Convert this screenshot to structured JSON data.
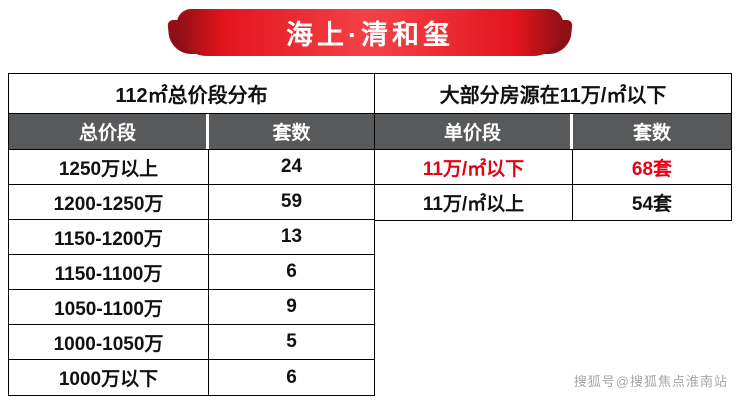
{
  "banner": {
    "title": "海上·清和玺"
  },
  "left_table": {
    "title": "112㎡总价段分布",
    "headers": [
      "总价段",
      "套数"
    ],
    "rows": [
      {
        "range": "1250万以上",
        "count": "24"
      },
      {
        "range": "1200-1250万",
        "count": "59"
      },
      {
        "range": "1150-1200万",
        "count": "13"
      },
      {
        "range": "1150-1100万",
        "count": "6"
      },
      {
        "range": "1050-1100万",
        "count": "9"
      },
      {
        "range": "1000-1050万",
        "count": "5"
      },
      {
        "range": "1000万以下",
        "count": "6"
      }
    ]
  },
  "right_table": {
    "title": "大部分房源在11万/㎡以下",
    "headers": [
      "单价段",
      "套数"
    ],
    "rows": [
      {
        "range": "11万/㎡以下",
        "count": "68套"
      },
      {
        "range": "11万/㎡以上",
        "count": "54套"
      }
    ]
  },
  "watermark": "搜狐号@搜狐焦点淮南站",
  "colors": {
    "banner_red": "#ed1c24",
    "banner_dark_red": "#8f0f15",
    "header_gray": "#58595b",
    "highlight_red": "#e60012"
  },
  "chart_data": [
    {
      "type": "table",
      "title": "112㎡总价段分布",
      "columns": [
        "总价段",
        "套数"
      ],
      "rows": [
        [
          "1250万以上",
          24
        ],
        [
          "1200-1250万",
          59
        ],
        [
          "1150-1200万",
          13
        ],
        [
          "1150-1100万",
          6
        ],
        [
          "1050-1100万",
          9
        ],
        [
          "1000-1050万",
          5
        ],
        [
          "1000万以下",
          6
        ]
      ]
    },
    {
      "type": "table",
      "title": "大部分房源在11万/㎡以下",
      "columns": [
        "单价段",
        "套数"
      ],
      "rows": [
        [
          "11万/㎡以下",
          "68套"
        ],
        [
          "11万/㎡以上",
          "54套"
        ]
      ]
    }
  ]
}
